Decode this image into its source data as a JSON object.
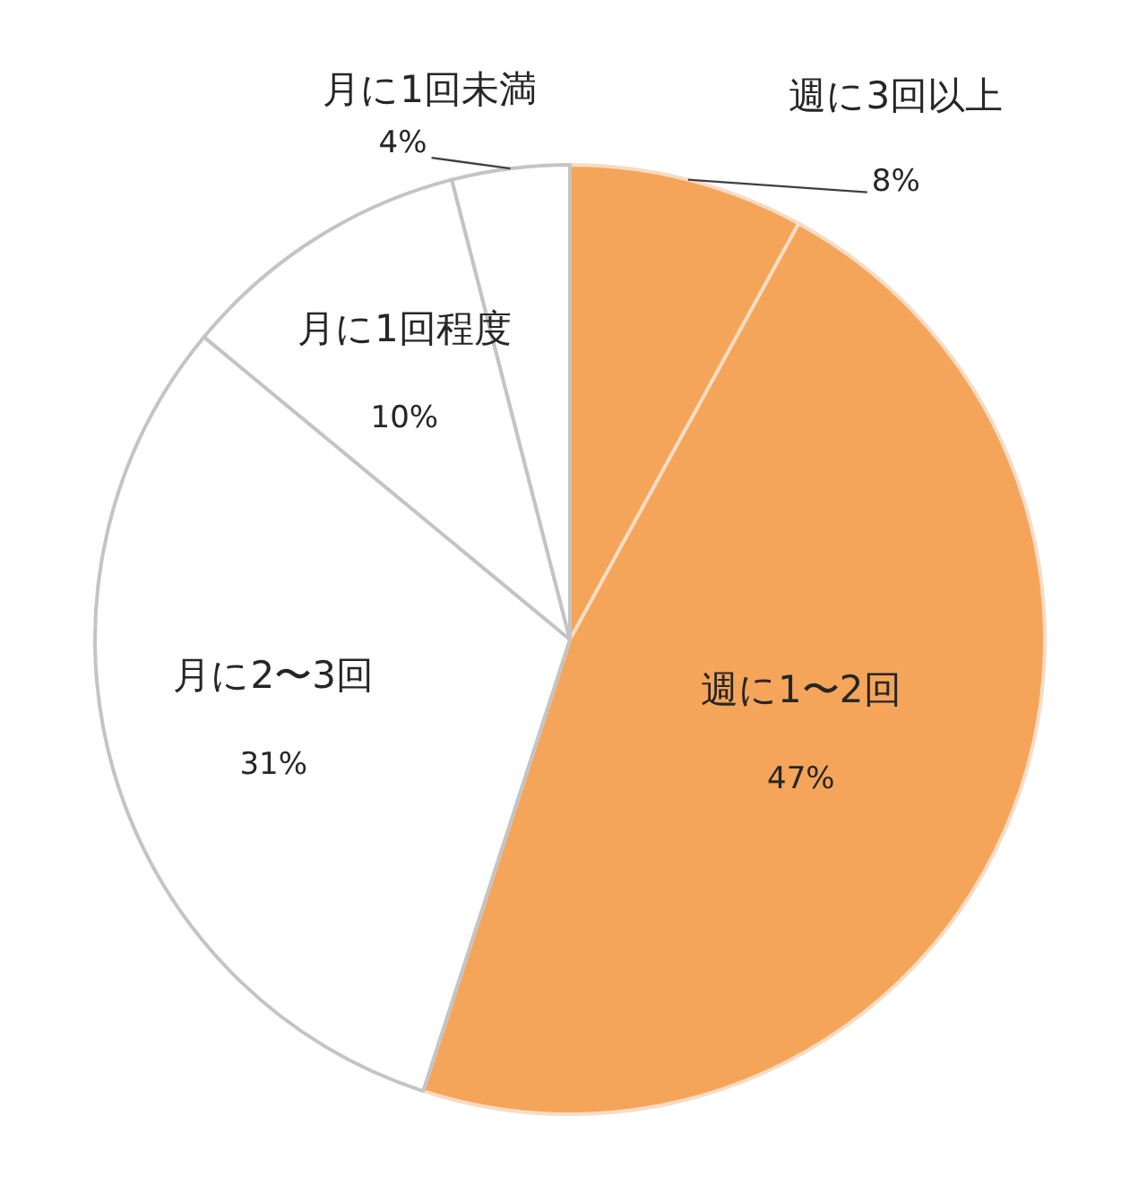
{
  "chart_data": {
    "type": "pie",
    "categories": [
      "週に3回以上",
      "週に1〜2回",
      "月に2〜3回",
      "月に1回程度",
      "月に1回未満"
    ],
    "values": [
      8,
      47,
      31,
      10,
      4
    ],
    "colors": [
      "#f5a55a",
      "#f5a55a",
      "#ffffff",
      "#ffffff",
      "#ffffff"
    ],
    "value_labels": [
      "8%",
      "47%",
      "31%",
      "10%",
      "4%"
    ]
  }
}
